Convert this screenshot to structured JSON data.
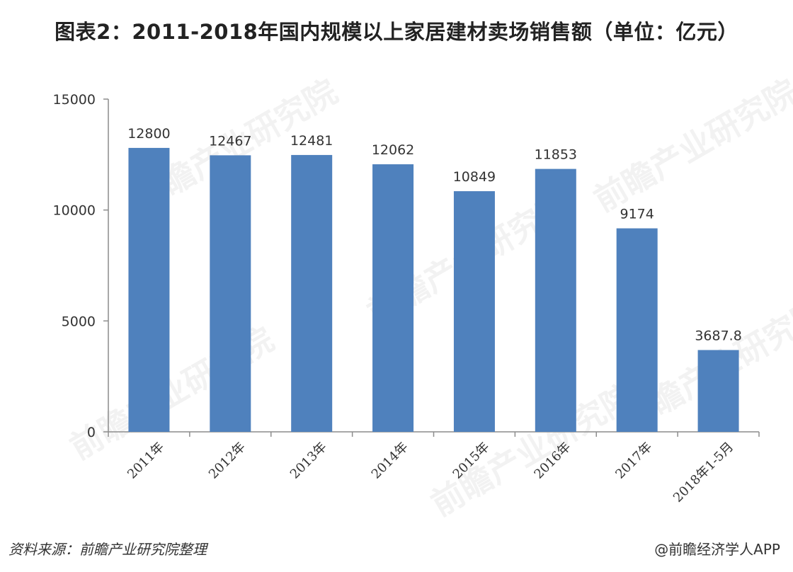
{
  "title": "图表2：2011-2018年国内规模以上家居建材卖场销售额（单位：亿元）",
  "watermark": "前瞻产业研究院",
  "footer": {
    "source": "资料来源：前瞻产业研究院整理",
    "credit": "@前瞻经济学人APP"
  },
  "colors": {
    "bar": "#4f81bd",
    "axis": "#8c8c8c",
    "text": "#333333"
  },
  "chart_data": {
    "type": "bar",
    "categories": [
      "2011年",
      "2012年",
      "2013年",
      "2014年",
      "2015年",
      "2016年",
      "2017年",
      "2018年1-5月"
    ],
    "values": [
      12800,
      12467,
      12481,
      12062,
      10849,
      11853,
      9174,
      3687.8
    ],
    "value_labels": [
      "12800",
      "12467",
      "12481",
      "12062",
      "10849",
      "11853",
      "9174",
      "3687.8"
    ],
    "ylim": [
      0,
      15000
    ],
    "yticks": [
      0,
      5000,
      10000,
      15000
    ],
    "grid": false,
    "legend": "none"
  }
}
